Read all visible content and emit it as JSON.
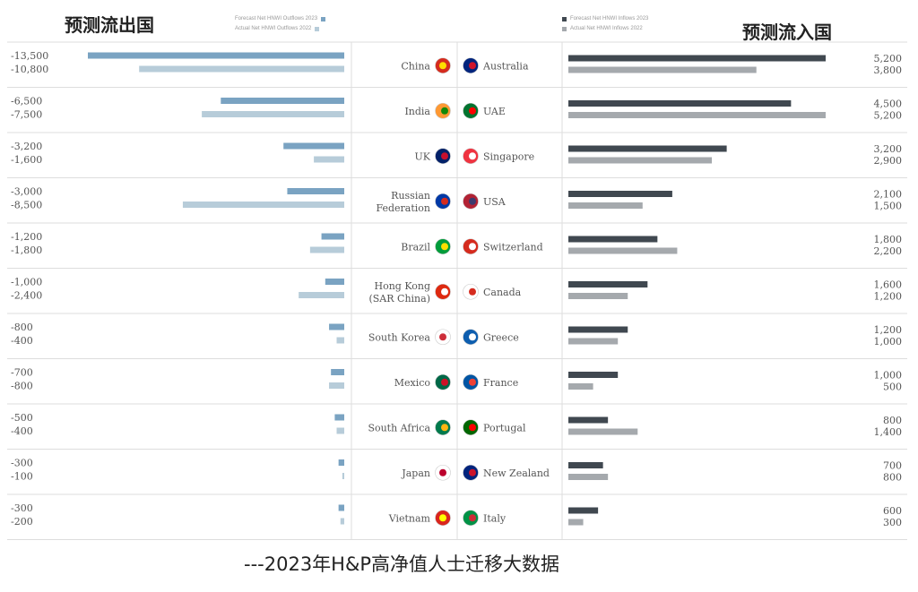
{
  "header": {
    "left_title": "预测流出国",
    "right_title": "预测流入国",
    "legend_left": [
      "Forecast Net HNWI Outflows 2023",
      "Actual Net HNWI Outflows 2022"
    ],
    "legend_right": [
      "Forecast Net HNWI Inflows 2023",
      "Actual Net HNWI Inflows 2022"
    ]
  },
  "footer": {
    "caption": "---2023年H&P高净值人士迁移大数据"
  },
  "colors": {
    "outflow_forecast": "#7aa3c2",
    "outflow_actual": "#b7ccd9",
    "inflow_forecast": "#404850",
    "inflow_actual": "#a5a9ad",
    "divider": "#dddddd"
  },
  "chart_data": [
    {
      "type": "bar",
      "orientation": "horizontal",
      "panel": "outflows",
      "categories": [
        "China",
        "India",
        "UK",
        "Russian Federation",
        "Brazil",
        "Hong Kong (SAR China)",
        "South Korea",
        "Mexico",
        "South Africa",
        "Japan",
        "Vietnam"
      ],
      "category_flags": [
        "china-flag-icon",
        "india-flag-icon",
        "uk-flag-icon",
        "russia-flag-icon",
        "brazil-flag-icon",
        "hong-kong-flag-icon",
        "south-korea-flag-icon",
        "mexico-flag-icon",
        "south-africa-flag-icon",
        "japan-flag-icon",
        "vietnam-flag-icon"
      ],
      "series": [
        {
          "name": "Forecast Net HNWI Outflows 2023",
          "values": [
            -13500,
            -6500,
            -3200,
            -3000,
            -1200,
            -1000,
            -800,
            -700,
            -500,
            -300,
            -300
          ],
          "labels": [
            "-13,500",
            "-6,500",
            "-3,200",
            "-3,000",
            "-1,200",
            "-1,000",
            "-800",
            "-700",
            "-500",
            "-300",
            "-300"
          ]
        },
        {
          "name": "Actual Net HNWI Outflows 2022",
          "values": [
            -10800,
            -7500,
            -1600,
            -8500,
            -1800,
            -2400,
            -400,
            -800,
            -400,
            -100,
            -200
          ],
          "labels": [
            "-10,800",
            "-7,500",
            "-1,600",
            "-8,500",
            "-1,800",
            "-2,400",
            "-400",
            "-800",
            "-400",
            "-100",
            "-200"
          ]
        }
      ],
      "xlim": [
        -13500,
        0
      ]
    },
    {
      "type": "bar",
      "orientation": "horizontal",
      "panel": "inflows",
      "categories": [
        "Australia",
        "UAE",
        "Singapore",
        "USA",
        "Switzerland",
        "Canada",
        "Greece",
        "France",
        "Portugal",
        "New Zealand",
        "Italy"
      ],
      "category_flags": [
        "australia-flag-icon",
        "uae-flag-icon",
        "singapore-flag-icon",
        "usa-flag-icon",
        "switzerland-flag-icon",
        "canada-flag-icon",
        "greece-flag-icon",
        "france-flag-icon",
        "portugal-flag-icon",
        "new-zealand-flag-icon",
        "italy-flag-icon"
      ],
      "series": [
        {
          "name": "Forecast Net HNWI Inflows 2023",
          "values": [
            5200,
            4500,
            3200,
            2100,
            1800,
            1600,
            1200,
            1000,
            800,
            700,
            600
          ],
          "labels": [
            "5,200",
            "4,500",
            "3,200",
            "2,100",
            "1,800",
            "1,600",
            "1,200",
            "1,000",
            "800",
            "700",
            "600"
          ]
        },
        {
          "name": "Actual Net HNWI Inflows 2022",
          "values": [
            3800,
            5200,
            2900,
            1500,
            2200,
            1200,
            1000,
            500,
            1400,
            800,
            300
          ],
          "labels": [
            "3,800",
            "5,200",
            "2,900",
            "1,500",
            "2,200",
            "1,200",
            "1,000",
            "500",
            "1,400",
            "800",
            "300"
          ]
        }
      ],
      "xlim": [
        0,
        5200
      ]
    }
  ]
}
